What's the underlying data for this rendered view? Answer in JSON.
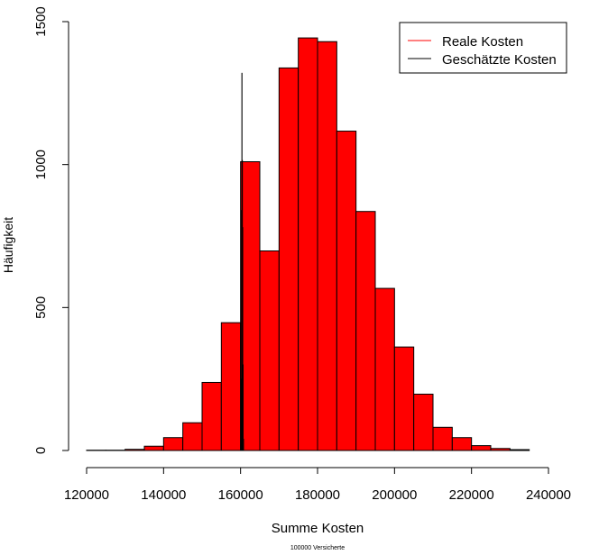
{
  "chart_data": {
    "type": "bar",
    "title": "",
    "xlabel": "Summe Kosten",
    "ylabel": "Häufigkeit",
    "subtitle": "100000 Versicherte",
    "xlim": [
      120000,
      240000
    ],
    "ylim": [
      0,
      1500
    ],
    "x_ticks": [
      120000,
      140000,
      160000,
      180000,
      200000,
      220000,
      240000
    ],
    "y_ticks": [
      0,
      500,
      1000,
      1500
    ],
    "grid": false,
    "legend_position": "top-right",
    "series": [
      {
        "name": "Reale Kosten",
        "type": "histogram",
        "color": "#FF0000",
        "bin_width": 5000,
        "bin_starts": [
          120000,
          125000,
          130000,
          135000,
          140000,
          145000,
          150000,
          155000,
          160000,
          165000,
          170000,
          175000,
          180000,
          185000,
          190000,
          195000,
          200000,
          205000,
          210000,
          215000,
          220000,
          225000,
          230000
        ],
        "counts": [
          1,
          1,
          4,
          15,
          45,
          97,
          238,
          447,
          1010,
          698,
          1338,
          1443,
          1430,
          1117,
          836,
          567,
          362,
          197,
          81,
          45,
          17,
          7,
          3
        ]
      },
      {
        "name": "Geschätzte Kosten",
        "type": "histogram",
        "color": "#000000",
        "bin_width": 100,
        "bin_starts": [
          160000,
          160100,
          160200,
          160300,
          160400,
          160500,
          160600,
          160700
        ],
        "counts": [
          20,
          250,
          840,
          1320,
          1015,
          780,
          300,
          40
        ]
      }
    ]
  }
}
